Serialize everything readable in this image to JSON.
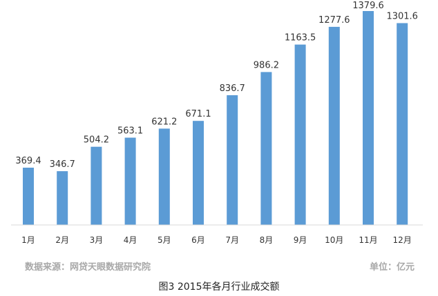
{
  "chart_data": {
    "type": "bar",
    "categories": [
      "1月",
      "2月",
      "3月",
      "4月",
      "5月",
      "6月",
      "7月",
      "8月",
      "9月",
      "10月",
      "11月",
      "12月"
    ],
    "values": [
      369.4,
      346.7,
      504.2,
      563.1,
      621.2,
      671.1,
      836.7,
      986.2,
      1163.5,
      1277.6,
      1379.6,
      1301.6
    ],
    "value_labels": [
      "369.4",
      "346.7",
      "504.2",
      "563.1",
      "621.2",
      "671.1",
      "836.7",
      "986.2",
      "1163.5",
      "1277.6",
      "1379.6",
      "1301.6"
    ],
    "ylim": [
      0,
      1379.6
    ],
    "grid": false,
    "legend": "none",
    "bar_color": "#5b9bd5"
  },
  "footer": {
    "source": "数据来源：网贷天眼数据研究院",
    "unit": "单位：亿元",
    "caption": "图3 2015年各月行业成交额"
  }
}
